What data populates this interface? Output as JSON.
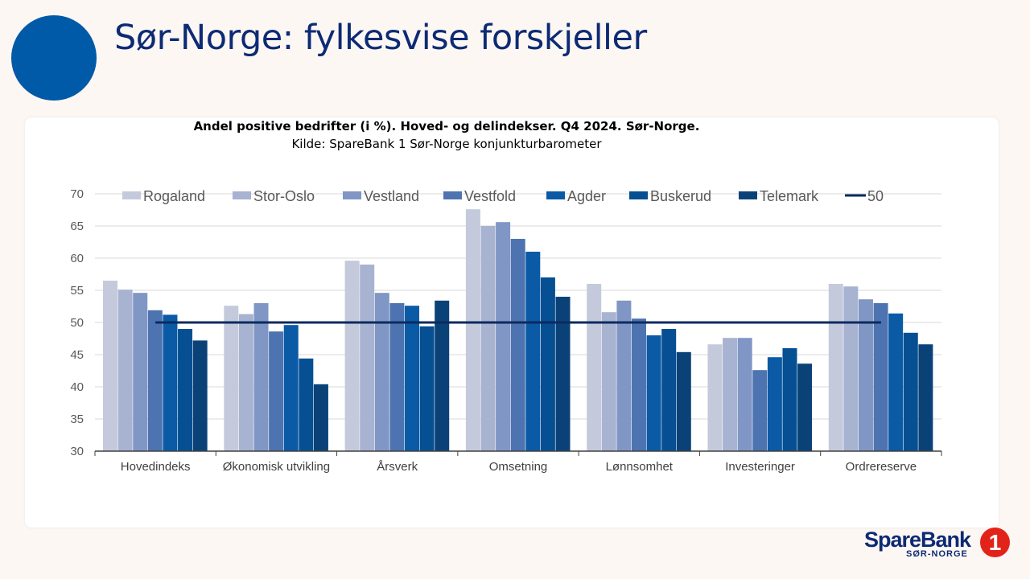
{
  "header": {
    "title": "Sør-Norge: fylkesvise forskjeller"
  },
  "footer": {
    "brand_name": "SpareBank",
    "brand_region": "SØR-NORGE",
    "brand_badge": "1"
  },
  "colors": {
    "title": "#0d2a74",
    "circle": "#005aa8",
    "reference_line": "#0d2a5f",
    "badge": "#e2231a"
  },
  "chart_data": {
    "type": "bar",
    "title": "Andel positive bedrifter (i %). Hoved- og delindekser. Q4 2024. Sør-Norge.",
    "subtitle": "Kilde: SpareBank 1 Sør-Norge konjunkturbarometer",
    "xlabel": "",
    "ylabel": "",
    "ylim": [
      30,
      70
    ],
    "yticks": [
      30,
      35,
      40,
      45,
      50,
      55,
      60,
      65,
      70
    ],
    "grid": true,
    "legend_position": "top",
    "categories": [
      "Hovedindeks",
      "Økonomisk utvikling",
      "Årsverk",
      "Omsetning",
      "Lønnsomhet",
      "Investeringer",
      "Ordrereserve"
    ],
    "series": [
      {
        "name": "Rogaland",
        "color": "#c4cadb",
        "values": [
          56.5,
          52.6,
          59.6,
          67.6,
          56.0,
          46.6,
          56.0
        ]
      },
      {
        "name": "Stor-Oslo",
        "color": "#a7b3d0",
        "values": [
          55.1,
          51.3,
          59.0,
          65.0,
          51.6,
          47.6,
          55.6
        ]
      },
      {
        "name": "Vestland",
        "color": "#8096c4",
        "values": [
          54.6,
          53.0,
          54.6,
          65.6,
          53.4,
          47.6,
          53.6
        ]
      },
      {
        "name": "Vestfold",
        "color": "#4d74b0",
        "values": [
          51.9,
          48.6,
          53.0,
          63.0,
          50.6,
          42.6,
          53.0
        ]
      },
      {
        "name": "Agder",
        "color": "#0a5aa6",
        "values": [
          51.2,
          49.6,
          52.6,
          61.0,
          48.0,
          44.6,
          51.4
        ]
      },
      {
        "name": "Buskerud",
        "color": "#054f92",
        "values": [
          49.0,
          44.4,
          49.4,
          57.0,
          49.0,
          46.0,
          48.4
        ]
      },
      {
        "name": "Telemark",
        "color": "#0a4278",
        "values": [
          47.2,
          40.4,
          53.4,
          54.0,
          45.4,
          43.6,
          46.6
        ]
      }
    ],
    "reference_line": {
      "name": "50",
      "value": 50
    }
  }
}
